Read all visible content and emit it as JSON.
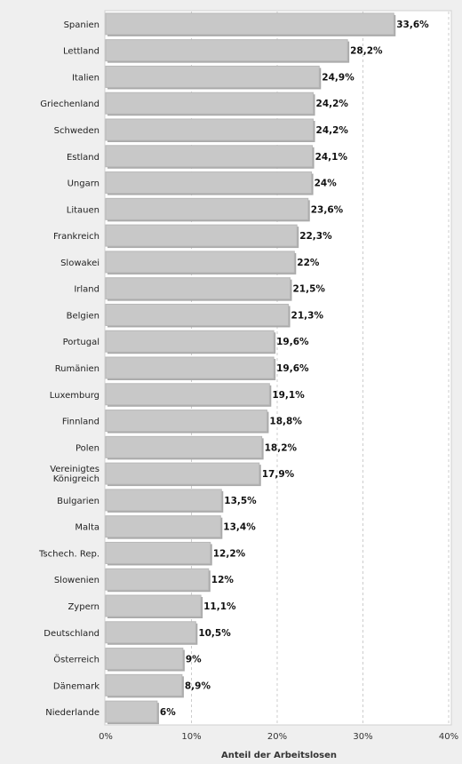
{
  "chart_data": {
    "type": "bar",
    "orientation": "horizontal",
    "categories": [
      "Spanien",
      "Lettland",
      "Italien",
      "Griechenland",
      "Schweden",
      "Estland",
      "Ungarn",
      "Litauen",
      "Frankreich",
      "Slowakei",
      "Irland",
      "Belgien",
      "Portugal",
      "Rumänien",
      "Luxemburg",
      "Finnland",
      "Polen",
      "Vereinigtes Königreich",
      "Bulgarien",
      "Malta",
      "Tschech. Rep.",
      "Slowenien",
      "Zypern",
      "Deutschland",
      "Österreich",
      "Dänemark",
      "Niederlande"
    ],
    "values": [
      33.6,
      28.2,
      24.9,
      24.2,
      24.2,
      24.1,
      24,
      23.6,
      22.3,
      22,
      21.5,
      21.3,
      19.6,
      19.6,
      19.1,
      18.8,
      18.2,
      17.9,
      13.5,
      13.4,
      12.2,
      12,
      11.1,
      10.5,
      9,
      8.9,
      6
    ],
    "value_labels": [
      "33,6%",
      "28,2%",
      "24,9%",
      "24,2%",
      "24,2%",
      "24,1%",
      "24%",
      "23,6%",
      "22,3%",
      "22%",
      "21,5%",
      "21,3%",
      "19,6%",
      "19,6%",
      "19,1%",
      "18,8%",
      "18,2%",
      "17,9%",
      "13,5%",
      "13,4%",
      "12,2%",
      "12%",
      "11,1%",
      "10,5%",
      "9%",
      "8,9%",
      "6%"
    ],
    "xlim": [
      0,
      40
    ],
    "xticks": [
      0,
      10,
      20,
      30,
      40
    ],
    "xtick_labels": [
      "0%",
      "10%",
      "20%",
      "30%",
      "40%"
    ],
    "xlabel": "Anteil der Arbeitslosen",
    "grid": "vertical-dashed",
    "bar_color": "#c8c8c8"
  }
}
